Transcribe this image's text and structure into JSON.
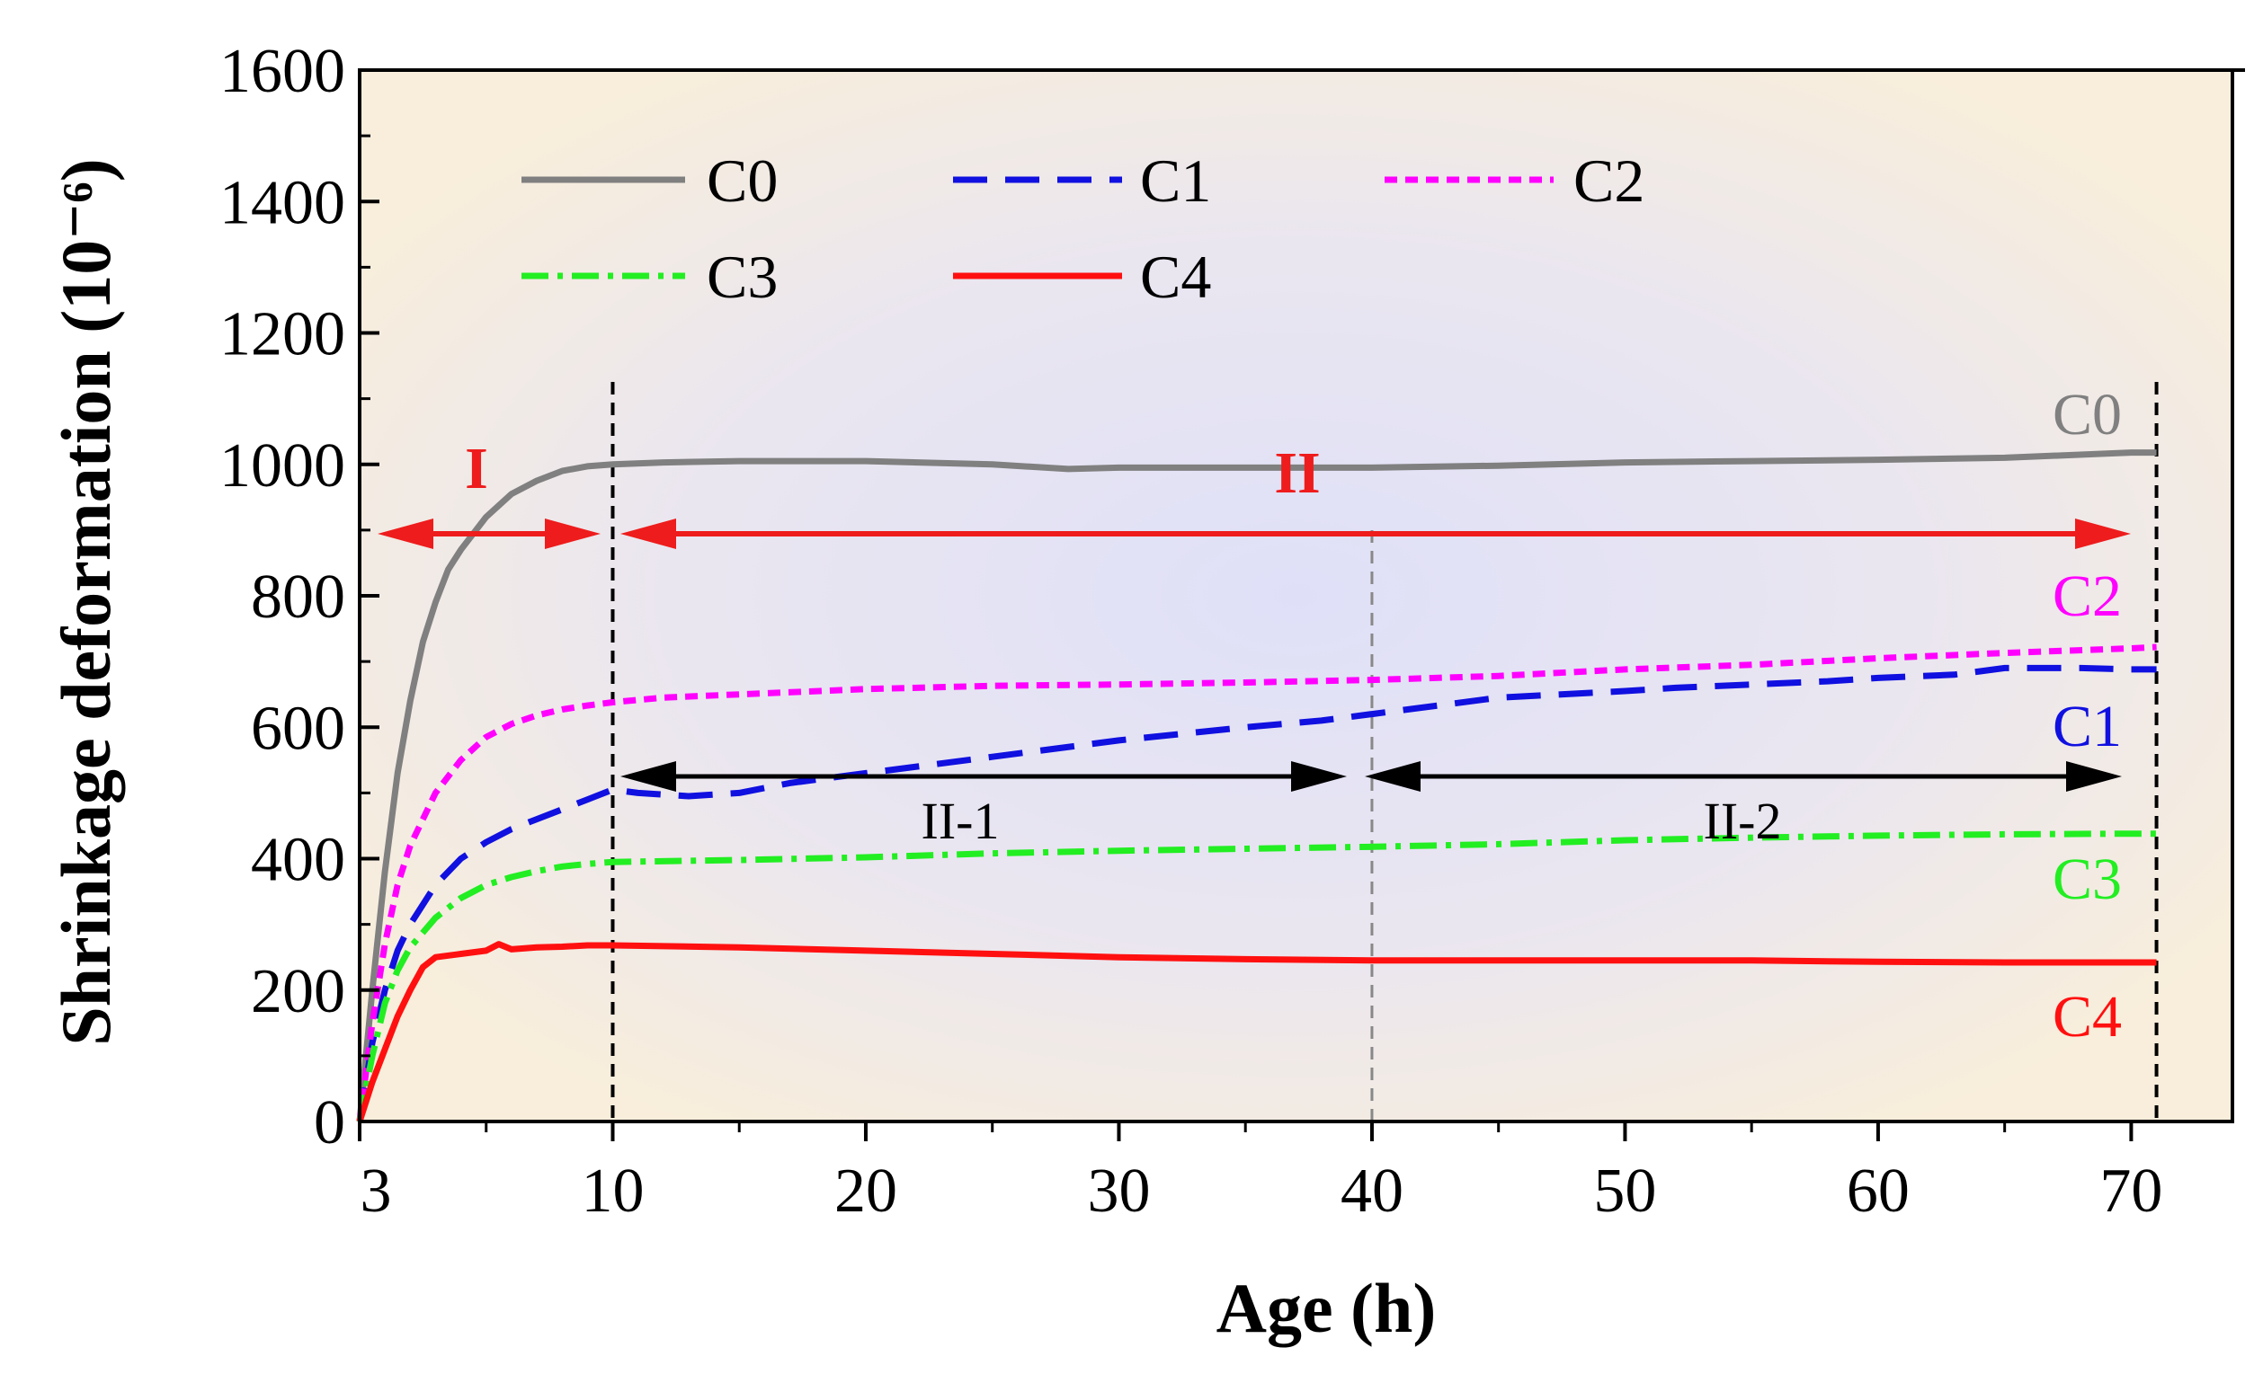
{
  "chart_data": {
    "type": "line",
    "xlabel": "Age (h)",
    "ylabel": "Shrinkage deformation (10⁻⁶)",
    "xlim": [
      0,
      74
    ],
    "ylim": [
      0,
      1600
    ],
    "xticks": [
      {
        "v": 0,
        "label": "3"
      },
      {
        "v": 10,
        "label": "10"
      },
      {
        "v": 20,
        "label": "20"
      },
      {
        "v": 30,
        "label": "30"
      },
      {
        "v": 40,
        "label": "40"
      },
      {
        "v": 50,
        "label": "50"
      },
      {
        "v": 60,
        "label": "60"
      },
      {
        "v": 70,
        "label": "70"
      }
    ],
    "yticks": [
      0,
      200,
      400,
      600,
      800,
      1000,
      1200,
      1400,
      1600
    ],
    "series": [
      {
        "name": "C0",
        "color": "#808080",
        "dash": "",
        "end_label": "C0",
        "x": [
          0,
          0.5,
          1,
          1.5,
          2,
          2.5,
          3,
          3.5,
          4,
          5,
          6,
          7,
          8,
          9,
          10,
          12,
          15,
          20,
          25,
          28,
          30,
          35,
          40,
          45,
          50,
          55,
          60,
          65,
          70,
          71
        ],
        "y": [
          0,
          200,
          380,
          530,
          640,
          730,
          790,
          840,
          870,
          920,
          955,
          975,
          990,
          997,
          1000,
          1003,
          1005,
          1005,
          1000,
          993,
          995,
          995,
          995,
          998,
          1003,
          1005,
          1007,
          1010,
          1018,
          1018
        ]
      },
      {
        "name": "C1",
        "color": "#1010e0",
        "dash": "38,20",
        "end_label": "C1",
        "x": [
          0,
          0.5,
          1,
          1.5,
          2,
          3,
          4,
          5,
          6,
          7,
          8,
          9,
          10,
          11,
          13,
          15,
          17,
          20,
          25,
          30,
          35,
          38,
          40,
          43,
          45,
          50,
          52,
          55,
          58,
          60,
          63,
          65,
          68,
          70,
          71
        ],
        "y": [
          0,
          120,
          200,
          260,
          300,
          360,
          400,
          425,
          445,
          460,
          475,
          490,
          505,
          500,
          495,
          500,
          515,
          530,
          555,
          580,
          600,
          610,
          620,
          635,
          645,
          655,
          660,
          665,
          670,
          675,
          680,
          690,
          690,
          688,
          688
        ]
      },
      {
        "name": "C2",
        "color": "#ff00ff",
        "dash": "14,9",
        "end_label": "C2",
        "x": [
          0,
          0.5,
          1,
          1.5,
          2,
          3,
          4,
          5,
          6,
          7,
          8,
          9,
          10,
          12,
          15,
          20,
          25,
          30,
          35,
          40,
          45,
          50,
          55,
          60,
          65,
          70,
          71
        ],
        "y": [
          0,
          150,
          270,
          360,
          420,
          500,
          550,
          585,
          605,
          618,
          627,
          633,
          638,
          645,
          650,
          658,
          663,
          665,
          668,
          672,
          678,
          688,
          695,
          705,
          713,
          720,
          722
        ]
      },
      {
        "name": "C3",
        "color": "#22ee22",
        "dash": "30,10,6,10",
        "end_label": "C3",
        "x": [
          0,
          0.5,
          1,
          1.5,
          2,
          3,
          4,
          5,
          6,
          7,
          8,
          9,
          10,
          15,
          20,
          25,
          30,
          35,
          40,
          45,
          50,
          55,
          60,
          65,
          70,
          71
        ],
        "y": [
          0,
          100,
          180,
          230,
          265,
          310,
          340,
          360,
          372,
          381,
          388,
          392,
          395,
          398,
          402,
          408,
          412,
          415,
          418,
          422,
          428,
          432,
          435,
          437,
          438,
          438
        ]
      },
      {
        "name": "C4",
        "color": "#ff1010",
        "dash": "",
        "end_label": "C4",
        "x": [
          0,
          0.5,
          1,
          1.5,
          2,
          2.5,
          3,
          4,
          5,
          5.5,
          6,
          7,
          8,
          9,
          10,
          15,
          20,
          25,
          30,
          35,
          40,
          45,
          50,
          55,
          60,
          65,
          70,
          71
        ],
        "y": [
          0,
          60,
          110,
          160,
          200,
          235,
          250,
          255,
          260,
          270,
          262,
          265,
          266,
          268,
          268,
          265,
          260,
          255,
          250,
          247,
          245,
          245,
          245,
          245,
          243,
          242,
          242,
          242
        ]
      }
    ],
    "annotations": {
      "stage_I": "I",
      "stage_II": "II",
      "stage_II_1": "II-1",
      "stage_II_2": "II-2"
    },
    "boundaries": [
      10,
      40,
      71
    ],
    "legend": "top-left"
  }
}
